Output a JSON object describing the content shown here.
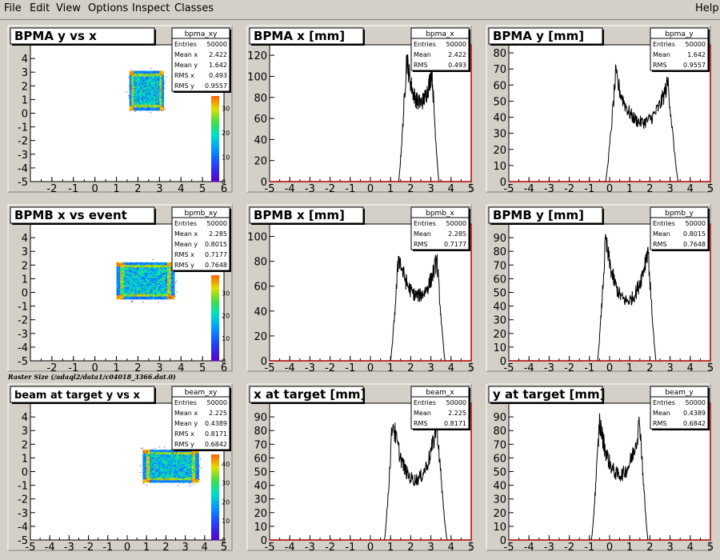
{
  "menu": {
    "file": "File",
    "edit": "Edit",
    "view": "View",
    "options": "Options",
    "inspect": "Inspect",
    "classes": "Classes",
    "help": "Help"
  },
  "caption": "Raster Size (/adaql2/data1/c04018_3366.dat.0)",
  "colors": {
    "panel_bg": "#d4d0c8",
    "frame_bg": "#ffffff",
    "hist_line": "#000000",
    "axis_red": "#b00000"
  },
  "chart_data": [
    {
      "type": "heatmap",
      "title": "BPMA y vs x",
      "xlim": [
        -3,
        6
      ],
      "ylim": [
        -5,
        5
      ],
      "xticks": [
        -2,
        -1,
        0,
        1,
        2,
        3,
        4,
        5,
        6
      ],
      "yticks": [
        -5,
        -4,
        -3,
        -2,
        -1,
        0,
        1,
        2,
        3,
        4
      ],
      "blob": {
        "xmin": 1.6,
        "xmax": 3.2,
        "ymin": 0.2,
        "ymax": 3.1
      },
      "colorbar": {
        "ticks": [
          0,
          10,
          20,
          30
        ],
        "max": 35
      },
      "stats": {
        "name": "bpma_xy",
        "rows": [
          [
            "Entries",
            "50000"
          ],
          [
            "Mean x",
            "2.422"
          ],
          [
            "Mean y",
            "1.642"
          ],
          [
            "RMS x",
            "0.493"
          ],
          [
            "RMS y",
            "0.9557"
          ]
        ]
      }
    },
    {
      "type": "line",
      "title": "BPMA x [mm]",
      "xlim": [
        -5,
        5
      ],
      "ylim": [
        0,
        130
      ],
      "xticks": [
        -5,
        -4,
        -3,
        -2,
        -1,
        0,
        1,
        2,
        3,
        4,
        5
      ],
      "yticks": [
        0,
        20,
        40,
        60,
        80,
        100,
        120
      ],
      "shape": {
        "lo": 1.4,
        "hi": 3.4,
        "peakL": 1.8,
        "peakR": 3.05,
        "hpeakL": 118,
        "hpeakR": 106,
        "hmid": 70
      },
      "stats": {
        "name": "bpma_x",
        "rows": [
          [
            "Entries",
            "50000"
          ],
          [
            "Mean",
            "2.422"
          ],
          [
            "RMS",
            "0.493"
          ]
        ]
      }
    },
    {
      "type": "line",
      "title": "BPMA y [mm]",
      "xlim": [
        -5,
        5
      ],
      "ylim": [
        0,
        85
      ],
      "xticks": [
        -5,
        -4,
        -3,
        -2,
        -1,
        0,
        1,
        2,
        3,
        4,
        5
      ],
      "yticks": [
        0,
        10,
        20,
        30,
        40,
        50,
        60,
        70,
        80
      ],
      "shape": {
        "lo": -0.2,
        "hi": 3.4,
        "peakL": 0.3,
        "peakR": 2.9,
        "hpeakL": 66,
        "hpeakR": 62,
        "hmid": 33
      },
      "stats": {
        "name": "bpma_y",
        "rows": [
          [
            "Entries",
            "50000"
          ],
          [
            "Mean",
            "1.642"
          ],
          [
            "RMS",
            "0.9557"
          ]
        ]
      }
    },
    {
      "type": "heatmap",
      "title": "BPMB x vs event",
      "xlim": [
        -3,
        6
      ],
      "ylim": [
        -5,
        5
      ],
      "xticks": [
        -2,
        -1,
        0,
        1,
        2,
        3,
        4,
        5,
        6
      ],
      "yticks": [
        -5,
        -4,
        -3,
        -2,
        -1,
        0,
        1,
        2,
        3,
        4
      ],
      "blob": {
        "xmin": 1.0,
        "xmax": 3.7,
        "ymin": -0.5,
        "ymax": 2.2
      },
      "colorbar": {
        "ticks": [
          0,
          10,
          20,
          30
        ],
        "max": 38
      },
      "stats": {
        "name": "bpmb_xy",
        "rows": [
          [
            "Entries",
            "50000"
          ],
          [
            "Mean x",
            "2.285"
          ],
          [
            "Mean y",
            "0.8015"
          ],
          [
            "RMS x",
            "0.7177"
          ],
          [
            "RMS y",
            "0.7648"
          ]
        ]
      }
    },
    {
      "type": "line",
      "title": "BPMB x [mm]",
      "xlim": [
        -5,
        5
      ],
      "ylim": [
        0,
        110
      ],
      "xticks": [
        -5,
        -4,
        -3,
        -2,
        -1,
        0,
        1,
        2,
        3,
        4,
        5
      ],
      "yticks": [
        0,
        20,
        40,
        60,
        80,
        100
      ],
      "shape": {
        "lo": 1.0,
        "hi": 3.7,
        "peakL": 1.4,
        "peakR": 3.3,
        "hpeakL": 85,
        "hpeakR": 82,
        "hmid": 48
      },
      "stats": {
        "name": "bpmb_x",
        "rows": [
          [
            "Entries",
            "50000"
          ],
          [
            "Mean",
            "2.285"
          ],
          [
            "RMS",
            "0.7177"
          ]
        ]
      }
    },
    {
      "type": "line",
      "title": "BPMB y [mm]",
      "xlim": [
        -5,
        5
      ],
      "ylim": [
        0,
        100
      ],
      "xticks": [
        -5,
        -4,
        -3,
        -2,
        -1,
        0,
        1,
        2,
        3,
        4,
        5
      ],
      "yticks": [
        0,
        10,
        20,
        30,
        40,
        50,
        60,
        70,
        80,
        90
      ],
      "shape": {
        "lo": -0.6,
        "hi": 2.3,
        "peakL": -0.2,
        "peakR": 1.9,
        "hpeakL": 88,
        "hpeakR": 83,
        "hmid": 38
      },
      "stats": {
        "name": "bpmb_y",
        "rows": [
          [
            "Entries",
            "50000"
          ],
          [
            "Mean",
            "0.8015"
          ],
          [
            "RMS",
            "0.7648"
          ]
        ]
      }
    },
    {
      "type": "heatmap",
      "title": "beam at target y vs x",
      "xlim": [
        -5,
        5
      ],
      "ylim": [
        -5,
        5
      ],
      "xticks": [
        -5,
        -4,
        -3,
        -2,
        -1,
        0,
        1,
        2,
        3,
        4,
        5
      ],
      "yticks": [
        -5,
        -4,
        -3,
        -2,
        -1,
        0,
        1,
        2,
        3,
        4
      ],
      "blob": {
        "xmin": 0.8,
        "xmax": 3.7,
        "ymin": -0.8,
        "ymax": 1.6
      },
      "colorbar": {
        "ticks": [
          0,
          10,
          20,
          30,
          40
        ],
        "max": 45
      },
      "stats": {
        "name": "beam_xy",
        "rows": [
          [
            "Entries",
            "50000"
          ],
          [
            "Mean x",
            "2.225"
          ],
          [
            "Mean y",
            "0.4389"
          ],
          [
            "RMS x",
            "0.8171"
          ],
          [
            "RMS y",
            "0.6842"
          ]
        ]
      }
    },
    {
      "type": "line",
      "title": "x at target [mm]",
      "xlim": [
        -5,
        5
      ],
      "ylim": [
        0,
        100
      ],
      "xticks": [
        -5,
        -4,
        -3,
        -2,
        -1,
        0,
        1,
        2,
        3,
        4,
        5
      ],
      "yticks": [
        0,
        10,
        20,
        30,
        40,
        50,
        60,
        70,
        80,
        90
      ],
      "shape": {
        "lo": 0.7,
        "hi": 3.8,
        "peakL": 1.1,
        "peakR": 3.3,
        "hpeakL": 88,
        "hpeakR": 85,
        "hmid": 38
      },
      "stats": {
        "name": "beam_x",
        "rows": [
          [
            "Entries",
            "50000"
          ],
          [
            "Mean",
            "2.225"
          ],
          [
            "RMS",
            "0.8171"
          ]
        ]
      }
    },
    {
      "type": "line",
      "title": "y at target [mm]",
      "xlim": [
        -5,
        5
      ],
      "ylim": [
        0,
        100
      ],
      "xticks": [
        -5,
        -4,
        -3,
        -2,
        -1,
        0,
        1,
        2,
        3,
        4,
        5
      ],
      "yticks": [
        0,
        10,
        20,
        30,
        40,
        50,
        60,
        70,
        80,
        90
      ],
      "shape": {
        "lo": -0.9,
        "hi": 1.9,
        "peakL": -0.5,
        "peakR": 1.5,
        "hpeakL": 87,
        "hpeakR": 87,
        "hmid": 42
      },
      "stats": {
        "name": "beam_y",
        "rows": [
          [
            "Entries",
            "50000"
          ],
          [
            "Mean",
            "0.4389"
          ],
          [
            "RMS",
            "0.6842"
          ]
        ]
      }
    }
  ]
}
